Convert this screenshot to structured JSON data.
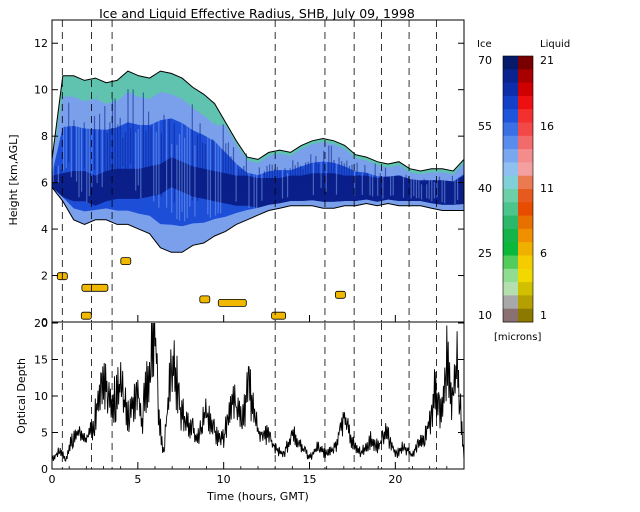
{
  "chart_data": [
    {
      "type": "heatmap",
      "title": "Ice and Liquid Effective Radius, SHB, July 09, 1998",
      "ylabel": "Height [km,AGL]",
      "xlim": [
        0,
        24
      ],
      "ylim": [
        0,
        13
      ],
      "yticks": [
        "0",
        "2",
        "4",
        "6",
        "8",
        "10",
        "12"
      ],
      "cloud_base_km": [
        5.8,
        5.2,
        4.4,
        4.2,
        4.4,
        4.4,
        4.2,
        4.2,
        4.0,
        3.8,
        3.2,
        3.0,
        3.0,
        3.3,
        3.4,
        3.7,
        3.9,
        4.2,
        4.4,
        4.6,
        4.8,
        4.9,
        5.0,
        5.0,
        5.0,
        4.9,
        4.9,
        5.0,
        5.0,
        5.1,
        5.0,
        5.1,
        5.0,
        5.0,
        5.0,
        4.9,
        4.8,
        4.8,
        4.8
      ],
      "cloud_top_km": [
        7.0,
        10.6,
        10.6,
        10.4,
        10.5,
        10.3,
        10.4,
        10.8,
        10.6,
        10.5,
        10.8,
        10.7,
        10.5,
        10.1,
        9.8,
        9.4,
        8.6,
        7.8,
        7.1,
        7.0,
        7.3,
        7.4,
        7.3,
        7.6,
        7.8,
        7.9,
        7.8,
        7.6,
        7.2,
        7.1,
        6.9,
        6.8,
        6.9,
        6.6,
        6.5,
        6.6,
        6.6,
        6.5,
        7.0
      ],
      "cloud_core_km": [
        5.6,
        5.7,
        5.8,
        5.8,
        5.6,
        5.8,
        5.9,
        5.9,
        5.9,
        6.0,
        6.1,
        6.4,
        6.2,
        6.0,
        5.9,
        5.8,
        5.7,
        5.6,
        5.6,
        5.5,
        5.5,
        5.5,
        5.6,
        5.6,
        5.7,
        5.7,
        5.7,
        5.6,
        5.6,
        5.6,
        5.5,
        5.6,
        5.6,
        5.6,
        5.6,
        5.5,
        5.5,
        5.5,
        5.6
      ]
    },
    {
      "type": "line",
      "ylabel": "Optical Depth",
      "xlabel": "Time (hours, GMT)",
      "xlim": [
        0,
        24
      ],
      "ylim": [
        0,
        20
      ],
      "xticks": [
        "0",
        "5",
        "10",
        "15",
        "20"
      ],
      "yticks": [
        "0",
        "5",
        "10",
        "15",
        "20"
      ],
      "x": [
        0.0,
        0.5,
        0.8,
        1.0,
        1.5,
        2.0,
        2.4,
        3.0,
        3.5,
        4.0,
        4.5,
        5.0,
        5.2,
        5.6,
        6.0,
        6.2,
        6.5,
        7.0,
        7.5,
        8.0,
        8.5,
        9.0,
        9.5,
        10.0,
        10.5,
        11.0,
        11.5,
        12.0,
        12.5,
        13.0,
        13.5,
        14.0,
        14.5,
        15.0,
        15.5,
        16.0,
        16.5,
        17.0,
        17.5,
        18.0,
        18.5,
        19.0,
        19.5,
        20.0,
        20.5,
        21.0,
        21.5,
        22.0,
        22.3,
        22.6,
        23.0,
        23.3,
        23.6,
        24.0
      ],
      "series": [
        {
          "values": [
            1.5,
            2.5,
            1.0,
            3.0,
            5.0,
            4.0,
            6.0,
            13.0,
            9.0,
            11.0,
            7.0,
            12.0,
            6.0,
            13.0,
            20.0,
            8.0,
            2.0,
            16.0,
            8.0,
            6.0,
            4.0,
            8.0,
            5.0,
            4.0,
            10.0,
            7.0,
            11.0,
            5.0,
            5.0,
            3.0,
            2.0,
            5.0,
            3.0,
            1.5,
            3.0,
            2.0,
            3.0,
            7.0,
            4.0,
            2.0,
            4.0,
            3.0,
            5.0,
            2.0,
            3.0,
            2.0,
            4.0,
            6.0,
            11.0,
            7.0,
            15.0,
            9.0,
            14.0,
            1.5
          ]
        }
      ]
    }
  ],
  "colorbar": {
    "label_ice": "Ice",
    "label_liquid": "Liquid",
    "unit": "[microns]",
    "ice_ticks": [
      "70",
      "55",
      "40",
      "25",
      "10"
    ],
    "liquid_ticks": [
      "21",
      "16",
      "11",
      "6",
      "1"
    ],
    "ice_colors": [
      "#061a6b",
      "#0a238e",
      "#0d2ea8",
      "#1440c8",
      "#1e55dc",
      "#3a70e4",
      "#5a8cec",
      "#7aa8f0",
      "#90c0f0",
      "#7fd0d8",
      "#6ccfa8",
      "#4cc48c",
      "#2bb86a",
      "#14b44a",
      "#0cb83c",
      "#52cc5a",
      "#90dc90",
      "#b4e0b0",
      "#a8a8a8",
      "#8a7070"
    ],
    "liquid_colors": [
      "#7a0000",
      "#a80000",
      "#d00000",
      "#ee1010",
      "#f23030",
      "#f24848",
      "#f26a6a",
      "#f48c8c",
      "#f4a0a0",
      "#ec7a50",
      "#e65a20",
      "#e84c00",
      "#e87000",
      "#f09000",
      "#f0b000",
      "#f4cc00",
      "#f0d800",
      "#d0c000",
      "#b4a000",
      "#8c7a00"
    ]
  },
  "colors": {
    "deep": "#0a1f8a",
    "mid": "#1c4ed8",
    "light": "#7aa0ec",
    "teal": "#5cc6a8",
    "outline": "#000000",
    "liquid_patch": "#f0b800"
  }
}
